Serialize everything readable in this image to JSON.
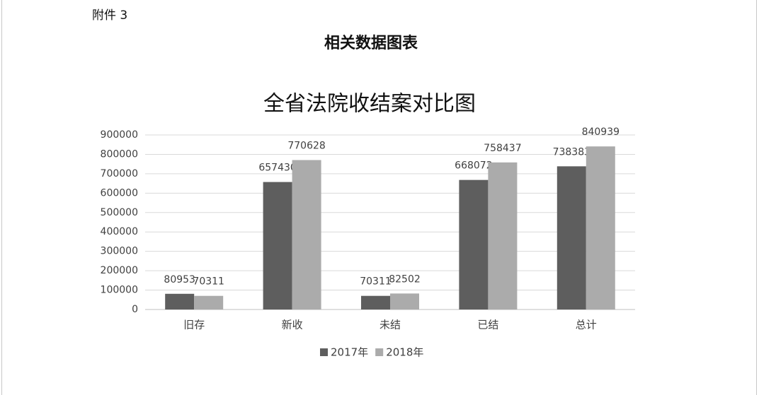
{
  "attachment_label": "附件 3",
  "heading": "相关数据图表",
  "chart_data": {
    "type": "bar",
    "title": "全省法院收结案对比图",
    "categories": [
      "旧存",
      "新收",
      "未结",
      "已结",
      "总计"
    ],
    "series": [
      {
        "name": "2017年",
        "color": "#5e5e5e",
        "values": [
          80953,
          657430,
          70311,
          668072,
          738383
        ]
      },
      {
        "name": "2018年",
        "color": "#ababab",
        "values": [
          70311,
          770628,
          82502,
          758437,
          840939
        ]
      }
    ],
    "ylim": [
      0,
      900000
    ],
    "yticks": [
      0,
      100000,
      200000,
      300000,
      400000,
      500000,
      600000,
      700000,
      800000,
      900000
    ],
    "grid": true,
    "legend": "bottom"
  }
}
